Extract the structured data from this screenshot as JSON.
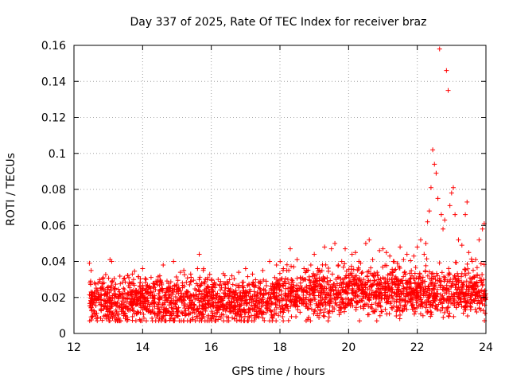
{
  "chart_data": {
    "type": "scatter",
    "title": "Day 337 of 2025, Rate Of TEC Index for receiver braz",
    "xlabel": "GPS time / hours",
    "ylabel": "ROTI / TECUs",
    "xlim": [
      12,
      24
    ],
    "ylim": [
      0,
      0.16
    ],
    "x_ticks": [
      12,
      14,
      16,
      18,
      20,
      22,
      24
    ],
    "y_ticks": [
      0,
      0.02,
      0.04,
      0.06,
      0.08,
      0.1,
      0.12,
      0.14,
      0.16
    ],
    "x_tick_labels": [
      "12",
      "14",
      "16",
      "18",
      "20",
      "22",
      "24"
    ],
    "y_tick_labels": [
      "0",
      "0.02",
      "0.04",
      "0.06",
      "0.08",
      "0.1",
      "0.12",
      "0.14",
      "0.16"
    ],
    "grid": true,
    "marker": "+",
    "marker_color": "#ff0000",
    "series": [
      {
        "name": "ROTI",
        "points": [
          [
            12.45,
            0.039
          ],
          [
            12.5,
            0.035
          ],
          [
            12.6,
            0.012
          ],
          [
            12.7,
            0.028
          ],
          [
            12.8,
            0.016
          ],
          [
            12.9,
            0.022
          ],
          [
            13.0,
            0.013
          ],
          [
            13.05,
            0.041
          ],
          [
            13.1,
            0.04
          ],
          [
            13.2,
            0.025
          ],
          [
            13.4,
            0.018
          ],
          [
            13.5,
            0.011
          ],
          [
            13.6,
            0.031
          ],
          [
            13.7,
            0.033
          ],
          [
            13.8,
            0.024
          ],
          [
            14.0,
            0.036
          ],
          [
            14.1,
            0.03
          ],
          [
            14.2,
            0.015
          ],
          [
            14.3,
            0.021
          ],
          [
            14.4,
            0.028
          ],
          [
            14.5,
            0.032
          ],
          [
            14.6,
            0.038
          ],
          [
            14.7,
            0.019
          ],
          [
            14.8,
            0.026
          ],
          [
            14.9,
            0.04
          ],
          [
            15.0,
            0.014
          ],
          [
            15.1,
            0.034
          ],
          [
            15.2,
            0.035
          ],
          [
            15.3,
            0.02
          ],
          [
            15.4,
            0.033
          ],
          [
            15.5,
            0.016
          ],
          [
            15.6,
            0.036
          ],
          [
            15.65,
            0.044
          ],
          [
            15.7,
            0.012
          ],
          [
            15.9,
            0.031
          ],
          [
            16.0,
            0.022
          ],
          [
            16.1,
            0.011
          ],
          [
            16.2,
            0.03
          ],
          [
            16.3,
            0.018
          ],
          [
            16.5,
            0.025
          ],
          [
            16.6,
            0.032
          ],
          [
            16.7,
            0.013
          ],
          [
            16.8,
            0.034
          ],
          [
            16.9,
            0.021
          ],
          [
            17.0,
            0.036
          ],
          [
            17.1,
            0.027
          ],
          [
            17.2,
            0.033
          ],
          [
            17.3,
            0.018
          ],
          [
            17.5,
            0.035
          ],
          [
            17.6,
            0.029
          ],
          [
            17.7,
            0.04
          ],
          [
            17.8,
            0.022
          ],
          [
            17.9,
            0.038
          ],
          [
            18.0,
            0.03
          ],
          [
            18.1,
            0.036
          ],
          [
            18.2,
            0.035
          ],
          [
            18.3,
            0.047
          ],
          [
            18.4,
            0.037
          ],
          [
            18.5,
            0.041
          ],
          [
            18.6,
            0.028
          ],
          [
            18.7,
            0.036
          ],
          [
            18.8,
            0.014
          ],
          [
            18.9,
            0.038
          ],
          [
            19.0,
            0.044
          ],
          [
            19.1,
            0.036
          ],
          [
            19.2,
            0.025
          ],
          [
            19.3,
            0.048
          ],
          [
            19.4,
            0.012
          ],
          [
            19.5,
            0.047
          ],
          [
            19.6,
            0.05
          ],
          [
            19.7,
            0.038
          ],
          [
            19.8,
            0.04
          ],
          [
            19.9,
            0.047
          ],
          [
            20.0,
            0.019
          ],
          [
            20.1,
            0.044
          ],
          [
            20.2,
            0.045
          ],
          [
            20.3,
            0.04
          ],
          [
            20.4,
            0.034
          ],
          [
            20.5,
            0.05
          ],
          [
            20.6,
            0.052
          ],
          [
            20.7,
            0.041
          ],
          [
            20.8,
            0.023
          ],
          [
            20.9,
            0.046
          ],
          [
            21.0,
            0.047
          ],
          [
            21.1,
            0.045
          ],
          [
            21.2,
            0.043
          ],
          [
            21.3,
            0.04
          ],
          [
            21.4,
            0.015
          ],
          [
            21.5,
            0.048
          ],
          [
            21.6,
            0.041
          ],
          [
            21.7,
            0.044
          ],
          [
            21.8,
            0.028
          ],
          [
            21.9,
            0.043
          ],
          [
            22.0,
            0.048
          ],
          [
            22.1,
            0.052
          ],
          [
            22.2,
            0.044
          ],
          [
            22.25,
            0.05
          ],
          [
            22.3,
            0.062
          ],
          [
            22.35,
            0.068
          ],
          [
            22.4,
            0.081
          ],
          [
            22.45,
            0.102
          ],
          [
            22.5,
            0.094
          ],
          [
            22.55,
            0.089
          ],
          [
            22.6,
            0.075
          ],
          [
            22.65,
            0.158
          ],
          [
            22.7,
            0.066
          ],
          [
            22.75,
            0.058
          ],
          [
            22.8,
            0.063
          ],
          [
            22.85,
            0.146
          ],
          [
            22.9,
            0.135
          ],
          [
            22.95,
            0.071
          ],
          [
            23.0,
            0.078
          ],
          [
            23.05,
            0.081
          ],
          [
            23.1,
            0.066
          ],
          [
            23.2,
            0.052
          ],
          [
            23.3,
            0.049
          ],
          [
            23.4,
            0.066
          ],
          [
            23.45,
            0.073
          ],
          [
            23.5,
            0.045
          ],
          [
            23.6,
            0.04
          ],
          [
            23.7,
            0.041
          ],
          [
            23.8,
            0.052
          ],
          [
            23.9,
            0.058
          ],
          [
            23.95,
            0.061
          ]
        ]
      }
    ]
  }
}
